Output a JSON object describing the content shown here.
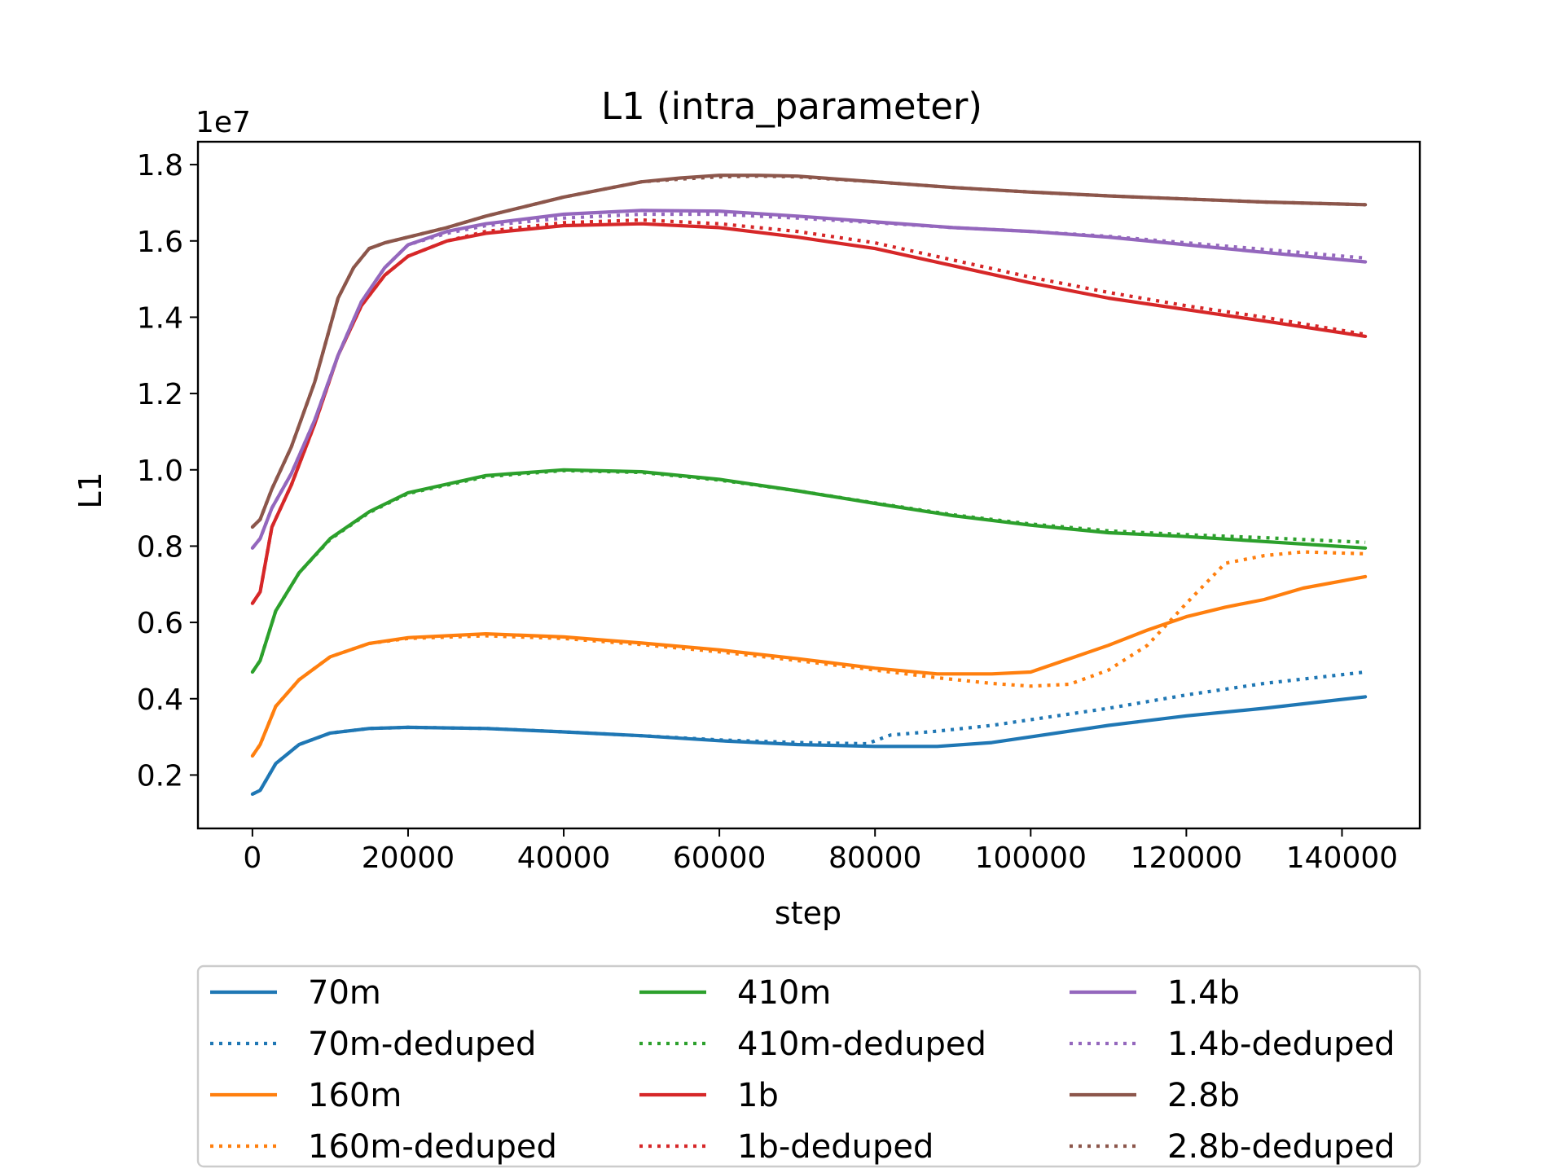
{
  "chart_data": {
    "type": "line",
    "title": "L1 (intra_parameter)",
    "xlabel": "step",
    "ylabel": "L1",
    "y_offset_label": "1e7",
    "y_multiplier": 10000000,
    "xlim": [
      -7000,
      150000
    ],
    "ylim": [
      0.06,
      1.86
    ],
    "x_ticks": [
      0,
      20000,
      40000,
      60000,
      80000,
      100000,
      120000,
      140000
    ],
    "x_tick_labels": [
      "0",
      "20000",
      "40000",
      "60000",
      "80000",
      "100000",
      "120000",
      "140000"
    ],
    "y_ticks": [
      0.2,
      0.4,
      0.6,
      0.8,
      1.0,
      1.2,
      1.4,
      1.6,
      1.8
    ],
    "y_tick_labels": [
      "0.2",
      "0.4",
      "0.6",
      "0.8",
      "1.0",
      "1.2",
      "1.4",
      "1.6",
      "1.8"
    ],
    "grid": false,
    "legend_placement": "below",
    "legend_columns": 3,
    "series": [
      {
        "name": "70m",
        "color": "#1f77b4",
        "style": "solid",
        "x": [
          0,
          1000,
          3000,
          6000,
          10000,
          15000,
          20000,
          30000,
          40000,
          50000,
          60000,
          70000,
          80000,
          88000,
          95000,
          100000,
          110000,
          120000,
          130000,
          143000
        ],
        "y": [
          0.15,
          0.16,
          0.23,
          0.28,
          0.31,
          0.322,
          0.325,
          0.322,
          0.313,
          0.303,
          0.29,
          0.28,
          0.275,
          0.275,
          0.285,
          0.3,
          0.33,
          0.355,
          0.375,
          0.405
        ]
      },
      {
        "name": "70m-deduped",
        "color": "#1f77b4",
        "style": "dotted",
        "x": [
          0,
          1000,
          3000,
          6000,
          10000,
          15000,
          20000,
          30000,
          40000,
          50000,
          60000,
          70000,
          79000,
          82000,
          88000,
          95000,
          100000,
          110000,
          120000,
          130000,
          143000
        ],
        "y": [
          0.15,
          0.16,
          0.23,
          0.28,
          0.31,
          0.322,
          0.325,
          0.322,
          0.313,
          0.303,
          0.292,
          0.285,
          0.282,
          0.305,
          0.315,
          0.33,
          0.345,
          0.375,
          0.41,
          0.44,
          0.47
        ]
      },
      {
        "name": "160m",
        "color": "#ff7f0e",
        "style": "solid",
        "x": [
          0,
          1000,
          3000,
          6000,
          10000,
          15000,
          20000,
          30000,
          40000,
          50000,
          60000,
          70000,
          80000,
          88000,
          95000,
          100000,
          105000,
          110000,
          115000,
          120000,
          125000,
          130000,
          135000,
          143000
        ],
        "y": [
          0.25,
          0.28,
          0.38,
          0.45,
          0.51,
          0.545,
          0.56,
          0.57,
          0.562,
          0.546,
          0.528,
          0.505,
          0.48,
          0.465,
          0.465,
          0.47,
          0.505,
          0.54,
          0.58,
          0.615,
          0.64,
          0.66,
          0.69,
          0.72
        ]
      },
      {
        "name": "160m-deduped",
        "color": "#ff7f0e",
        "style": "dotted",
        "x": [
          0,
          1000,
          3000,
          6000,
          10000,
          15000,
          20000,
          30000,
          40000,
          50000,
          60000,
          70000,
          80000,
          88000,
          95000,
          100000,
          105000,
          110000,
          115000,
          120000,
          125000,
          130000,
          135000,
          143000
        ],
        "y": [
          0.25,
          0.28,
          0.38,
          0.45,
          0.51,
          0.545,
          0.558,
          0.565,
          0.558,
          0.542,
          0.523,
          0.5,
          0.475,
          0.455,
          0.44,
          0.433,
          0.438,
          0.475,
          0.54,
          0.65,
          0.755,
          0.775,
          0.785,
          0.78
        ]
      },
      {
        "name": "410m",
        "color": "#2ca02c",
        "style": "solid",
        "x": [
          0,
          1000,
          3000,
          6000,
          10000,
          15000,
          20000,
          30000,
          40000,
          50000,
          60000,
          70000,
          80000,
          90000,
          100000,
          110000,
          120000,
          130000,
          143000
        ],
        "y": [
          0.47,
          0.5,
          0.63,
          0.73,
          0.82,
          0.89,
          0.94,
          0.985,
          1.0,
          0.995,
          0.975,
          0.945,
          0.912,
          0.88,
          0.855,
          0.835,
          0.825,
          0.812,
          0.795
        ]
      },
      {
        "name": "410m-deduped",
        "color": "#2ca02c",
        "style": "dotted",
        "x": [
          0,
          1000,
          3000,
          6000,
          10000,
          15000,
          20000,
          30000,
          40000,
          50000,
          60000,
          70000,
          80000,
          90000,
          100000,
          110000,
          120000,
          130000,
          143000
        ],
        "y": [
          0.47,
          0.5,
          0.63,
          0.73,
          0.818,
          0.888,
          0.938,
          0.982,
          0.998,
          0.993,
          0.973,
          0.945,
          0.913,
          0.882,
          0.858,
          0.84,
          0.83,
          0.822,
          0.81
        ]
      },
      {
        "name": "1b",
        "color": "#d62728",
        "style": "solid",
        "x": [
          0,
          1000,
          2500,
          5000,
          8000,
          11000,
          14000,
          17000,
          20000,
          25000,
          30000,
          40000,
          50000,
          60000,
          70000,
          80000,
          90000,
          100000,
          110000,
          120000,
          130000,
          143000
        ],
        "y": [
          0.65,
          0.68,
          0.85,
          0.96,
          1.12,
          1.3,
          1.43,
          1.51,
          1.56,
          1.6,
          1.62,
          1.64,
          1.645,
          1.635,
          1.61,
          1.58,
          1.535,
          1.49,
          1.45,
          1.42,
          1.39,
          1.35
        ]
      },
      {
        "name": "1b-deduped",
        "color": "#d62728",
        "style": "dotted",
        "x": [
          0,
          1000,
          2500,
          5000,
          8000,
          11000,
          14000,
          17000,
          20000,
          25000,
          30000,
          40000,
          50000,
          60000,
          70000,
          80000,
          90000,
          100000,
          110000,
          120000,
          130000,
          143000
        ],
        "y": [
          0.65,
          0.68,
          0.85,
          0.96,
          1.12,
          1.3,
          1.43,
          1.51,
          1.56,
          1.6,
          1.625,
          1.648,
          1.655,
          1.645,
          1.625,
          1.595,
          1.55,
          1.505,
          1.465,
          1.43,
          1.4,
          1.355
        ]
      },
      {
        "name": "1.4b",
        "color": "#9467bd",
        "style": "solid",
        "x": [
          0,
          1000,
          2500,
          5000,
          8000,
          11000,
          14000,
          17000,
          20000,
          25000,
          30000,
          40000,
          50000,
          60000,
          70000,
          80000,
          90000,
          100000,
          110000,
          120000,
          130000,
          143000
        ],
        "y": [
          0.795,
          0.82,
          0.9,
          0.99,
          1.13,
          1.3,
          1.44,
          1.53,
          1.59,
          1.625,
          1.645,
          1.67,
          1.68,
          1.678,
          1.665,
          1.65,
          1.635,
          1.625,
          1.61,
          1.59,
          1.57,
          1.545
        ]
      },
      {
        "name": "1.4b-deduped",
        "color": "#9467bd",
        "style": "dotted",
        "x": [
          0,
          1000,
          2500,
          5000,
          8000,
          11000,
          14000,
          17000,
          20000,
          25000,
          30000,
          40000,
          50000,
          60000,
          70000,
          80000,
          90000,
          100000,
          110000,
          120000,
          130000,
          143000
        ],
        "y": [
          0.795,
          0.82,
          0.9,
          0.99,
          1.13,
          1.3,
          1.44,
          1.53,
          1.59,
          1.62,
          1.64,
          1.66,
          1.67,
          1.67,
          1.66,
          1.648,
          1.635,
          1.625,
          1.612,
          1.595,
          1.578,
          1.555
        ]
      },
      {
        "name": "2.8b",
        "color": "#8c564b",
        "style": "solid",
        "x": [
          0,
          1000,
          2500,
          5000,
          8000,
          11000,
          13000,
          15000,
          17000,
          20000,
          25000,
          30000,
          40000,
          50000,
          55000,
          60000,
          65000,
          70000,
          80000,
          90000,
          100000,
          110000,
          120000,
          130000,
          143000
        ],
        "y": [
          0.85,
          0.87,
          0.95,
          1.06,
          1.23,
          1.45,
          1.53,
          1.58,
          1.595,
          1.61,
          1.635,
          1.665,
          1.715,
          1.755,
          1.765,
          1.772,
          1.772,
          1.77,
          1.755,
          1.74,
          1.728,
          1.718,
          1.71,
          1.702,
          1.695
        ]
      },
      {
        "name": "2.8b-deduped",
        "color": "#8c564b",
        "style": "dotted",
        "x": [
          0,
          1000,
          2500,
          5000,
          8000,
          11000,
          13000,
          15000,
          17000,
          20000,
          25000,
          30000,
          40000,
          50000,
          55000,
          60000,
          65000,
          70000,
          80000,
          90000,
          100000,
          110000,
          120000,
          130000,
          143000
        ],
        "y": [
          0.85,
          0.87,
          0.95,
          1.06,
          1.23,
          1.45,
          1.53,
          1.58,
          1.595,
          1.61,
          1.635,
          1.665,
          1.715,
          1.755,
          1.762,
          1.768,
          1.77,
          1.768,
          1.755,
          1.74,
          1.728,
          1.718,
          1.71,
          1.702,
          1.695
        ]
      }
    ]
  }
}
